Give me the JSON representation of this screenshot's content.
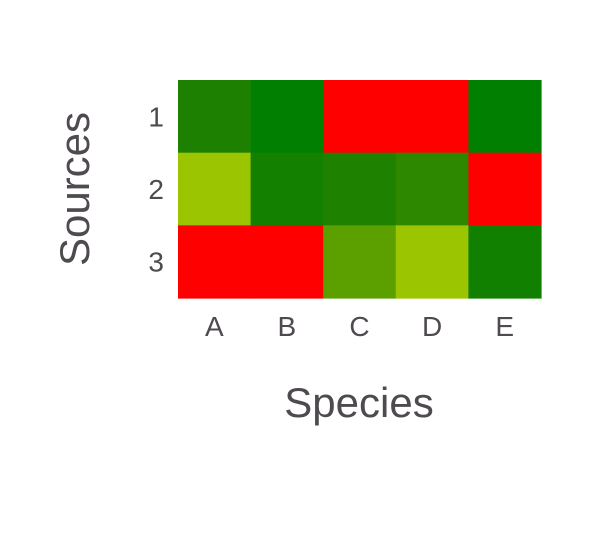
{
  "chart_data": {
    "type": "heatmap",
    "title": "",
    "xlabel": "Species",
    "ylabel": "Sources",
    "x_categories": [
      "A",
      "B",
      "C",
      "D",
      "E"
    ],
    "y_categories": [
      "1",
      "2",
      "3"
    ],
    "cells": [
      [
        "#1e8000",
        "#007f00",
        "#ff0000",
        "#ff0000",
        "#007f00"
      ],
      [
        "#9bc500",
        "#148000",
        "#1e8100",
        "#2d8800",
        "#ff0000"
      ],
      [
        "#ff0000",
        "#ff0000",
        "#5ca000",
        "#9bc500",
        "#118000"
      ]
    ],
    "legend": "none",
    "grid": false
  }
}
